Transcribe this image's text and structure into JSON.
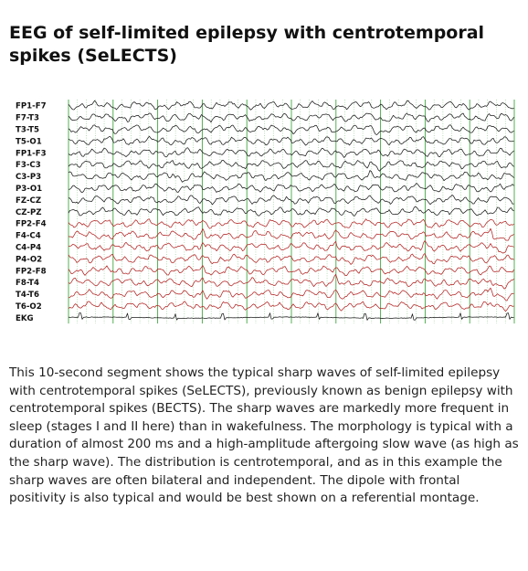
{
  "title": "EEG of self-limited epilepsy with centrotemporal spikes (SeLECTS)",
  "figure": {
    "channels": [
      {
        "label": "FP1-F7",
        "color": "#1a1a1a"
      },
      {
        "label": "F7-T3",
        "color": "#1a1a1a"
      },
      {
        "label": "T3-T5",
        "color": "#1a1a1a"
      },
      {
        "label": "T5-O1",
        "color": "#1a1a1a"
      },
      {
        "label": "FP1-F3",
        "color": "#1a1a1a"
      },
      {
        "label": "F3-C3",
        "color": "#1a1a1a"
      },
      {
        "label": "C3-P3",
        "color": "#1a1a1a"
      },
      {
        "label": "P3-O1",
        "color": "#1a1a1a"
      },
      {
        "label": "FZ-CZ",
        "color": "#1a1a1a"
      },
      {
        "label": "CZ-PZ",
        "color": "#1a1a1a"
      },
      {
        "label": "FP2-F4",
        "color": "#b22222"
      },
      {
        "label": "F4-C4",
        "color": "#b22222"
      },
      {
        "label": "C4-P4",
        "color": "#b22222"
      },
      {
        "label": "P4-O2",
        "color": "#b22222"
      },
      {
        "label": "FP2-F8",
        "color": "#b22222"
      },
      {
        "label": "F8-T4",
        "color": "#b22222"
      },
      {
        "label": "T4-T6",
        "color": "#b22222"
      },
      {
        "label": "T6-O2",
        "color": "#b22222"
      },
      {
        "label": "EKG",
        "color": "#1a1a1a"
      }
    ],
    "seconds": 10,
    "grid_color": "#2e9e2e"
  },
  "caption": "This 10-second segment shows the typical sharp waves of self-limited epilepsy with centrotemporal spikes (SeLECTS), previously known as benign epilepsy with centrotemporal spikes (BECTS). The sharp waves are markedly more frequent in sleep (stages I and II here) than in wakefulness. The morphology is typical with a duration of almost 200 ms and a high-amplitude aftergoing slow wave (as high as the sharp wave). The distribution is centrotemporal, and as in this example the sharp waves are often bilateral and independent. The dipole with frontal positivity is also typical and would be best shown on a referential montage."
}
